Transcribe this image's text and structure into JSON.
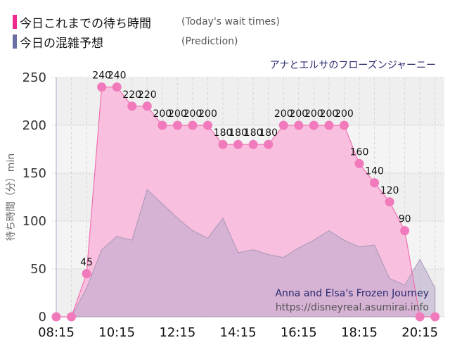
{
  "legend": {
    "actual": {
      "jp": "今日これまでの待ち時間",
      "en": "(Today's wait times)",
      "color": "#ee2a8e"
    },
    "prediction": {
      "jp": "今日の混雑予想",
      "en": "(Prediction)",
      "color": "#6b6fa3"
    }
  },
  "ride_title_jp": "アナとエルサのフローズンジャーニー",
  "watermark": {
    "title": "Anna and Elsa's Frozen Journey",
    "url": "https://disneyreal.asumirai.info"
  },
  "chart_data": {
    "type": "area",
    "title": "アナとエルサのフローズンジャーニー",
    "xlabel": "",
    "ylabel": "待ち時間（分）min",
    "ylim": [
      0,
      250
    ],
    "yticks": [
      0,
      50,
      100,
      150,
      200,
      250
    ],
    "xticks": [
      "08:15",
      "10:15",
      "12:15",
      "14:15",
      "16:15",
      "18:15",
      "20:15"
    ],
    "grid": true,
    "legend_position": "top-left",
    "x": [
      "08:15",
      "08:45",
      "09:15",
      "09:45",
      "10:15",
      "10:45",
      "11:15",
      "11:45",
      "12:15",
      "12:45",
      "13:15",
      "13:45",
      "14:15",
      "14:45",
      "15:15",
      "15:45",
      "16:15",
      "16:45",
      "17:15",
      "17:45",
      "18:15",
      "18:45",
      "19:15",
      "19:45",
      "20:15",
      "20:45"
    ],
    "series": [
      {
        "name": "Today's wait times",
        "values": [
          0,
          0,
          45,
          240,
          240,
          220,
          220,
          200,
          200,
          200,
          200,
          180,
          180,
          180,
          180,
          200,
          200,
          200,
          200,
          200,
          160,
          140,
          120,
          90,
          0,
          0
        ],
        "labels": [
          "",
          "",
          "45",
          "240",
          "240",
          "220",
          "220",
          "200",
          "200",
          "200",
          "200",
          "180",
          "180",
          "180",
          "180",
          "200",
          "200",
          "200",
          "200",
          "200",
          "160",
          "140",
          "120",
          "90",
          "",
          ""
        ]
      },
      {
        "name": "Prediction",
        "values": [
          0,
          0,
          30,
          70,
          84,
          80,
          133,
          118,
          103,
          90,
          82,
          103,
          67,
          70,
          65,
          62,
          72,
          80,
          90,
          80,
          73,
          75,
          40,
          33,
          60,
          30
        ]
      }
    ]
  }
}
